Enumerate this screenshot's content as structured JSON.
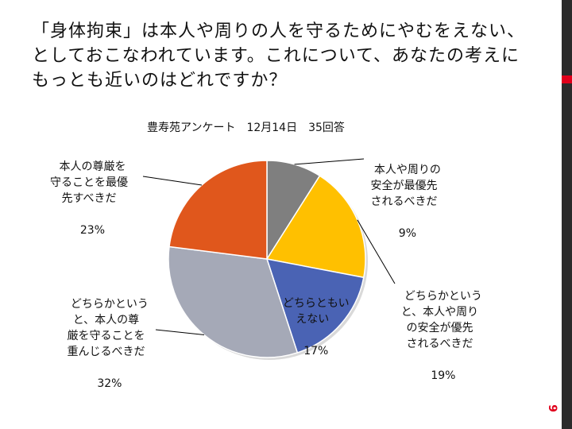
{
  "slide": {
    "question": "「身体拘束」は本人や周りの人を守るためにやむをえない、としておこなわれています。これについて、あなたの考えにもっとも近いのはどれですか？",
    "page_number": "9",
    "accent_color": "#e0001b"
  },
  "chart_data": {
    "type": "pie",
    "title": "豊寿苑アンケート　12月14日　35回答",
    "start_angle_deg": 0,
    "direction": "clockwise",
    "slices": [
      {
        "label": "本人や周りの\n安全が最優先\nされるべきだ",
        "value": 9,
        "pct_label": "9%",
        "color": "#7f7f7f"
      },
      {
        "label": "どちらかという\nと、本人や周り\nの安全が優先\nされるべきだ",
        "value": 19,
        "pct_label": "19%",
        "color": "#ffc000"
      },
      {
        "label": "どちらともい\nえない",
        "value": 17,
        "pct_label": "17%",
        "color": "#4a63b4"
      },
      {
        "label": "どちらかという\nと、本人の尊\n厳を守ることを\n重んじるべきだ",
        "value": 32,
        "pct_label": "32%",
        "color": "#a5a9b7"
      },
      {
        "label": "本人の尊厳を\n守ることを最優\n先すべきだ",
        "value": 23,
        "pct_label": "23%",
        "color": "#e0571c"
      }
    ]
  }
}
